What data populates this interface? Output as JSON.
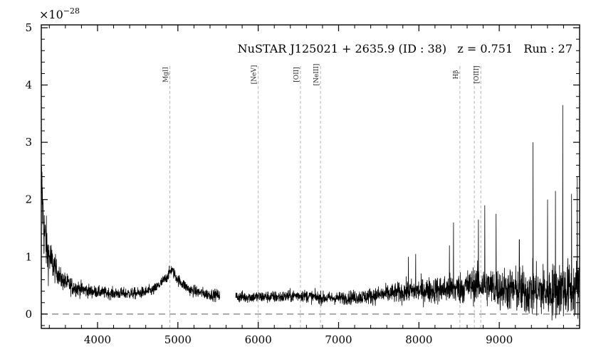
{
  "chart_data": {
    "type": "line",
    "title": "NuSTAR J125021 + 2635.9 (ID : 38)   z = 0.751   Run : 27",
    "xlabel": "",
    "ylabel": "",
    "y_multiplier_label": "×10",
    "y_multiplier_exponent": "−28",
    "xlim": [
      3300,
      10000
    ],
    "ylim": [
      -0.25,
      5.05
    ],
    "x_ticks": [
      4000,
      5000,
      6000,
      7000,
      8000,
      9000
    ],
    "y_ticks": [
      0,
      1,
      2,
      3,
      4,
      5
    ],
    "grid": false,
    "zero_line": {
      "y": 0,
      "style": "dashed",
      "color": "#888888"
    },
    "gap": [
      5520,
      5720
    ],
    "spectrum_anchors": [
      [
        3300,
        2.4
      ],
      [
        3330,
        1.5
      ],
      [
        3380,
        1.05
      ],
      [
        3450,
        0.85
      ],
      [
        3550,
        0.6
      ],
      [
        3700,
        0.47
      ],
      [
        3900,
        0.4
      ],
      [
        4200,
        0.36
      ],
      [
        4500,
        0.36
      ],
      [
        4700,
        0.42
      ],
      [
        4850,
        0.62
      ],
      [
        4920,
        0.78
      ],
      [
        5000,
        0.6
      ],
      [
        5150,
        0.42
      ],
      [
        5350,
        0.35
      ],
      [
        5500,
        0.33
      ],
      [
        5750,
        0.3
      ],
      [
        6000,
        0.3
      ],
      [
        6300,
        0.3
      ],
      [
        6520,
        0.33
      ],
      [
        6800,
        0.28
      ],
      [
        7000,
        0.28
      ],
      [
        7300,
        0.3
      ],
      [
        7600,
        0.35
      ],
      [
        7900,
        0.4
      ],
      [
        8200,
        0.42
      ],
      [
        8500,
        0.45
      ],
      [
        8700,
        0.52
      ],
      [
        9000,
        0.45
      ],
      [
        9300,
        0.4
      ],
      [
        9600,
        0.4
      ],
      [
        10000,
        0.45
      ]
    ],
    "noise_anchors": [
      [
        3300,
        0.7
      ],
      [
        3500,
        0.22
      ],
      [
        4000,
        0.12
      ],
      [
        5500,
        0.12
      ],
      [
        6500,
        0.13
      ],
      [
        7000,
        0.13
      ],
      [
        7500,
        0.18
      ],
      [
        8000,
        0.25
      ],
      [
        8500,
        0.33
      ],
      [
        9000,
        0.42
      ],
      [
        9500,
        0.55
      ],
      [
        10000,
        0.6
      ]
    ],
    "spikes": [
      {
        "x": 7870,
        "y": 1.0
      },
      {
        "x": 7960,
        "y": 1.05
      },
      {
        "x": 8380,
        "y": 1.2
      },
      {
        "x": 8430,
        "y": 1.6
      },
      {
        "x": 8740,
        "y": 1.65
      },
      {
        "x": 8820,
        "y": 1.9
      },
      {
        "x": 8960,
        "y": 1.75
      },
      {
        "x": 9250,
        "y": 1.3
      },
      {
        "x": 9420,
        "y": 3.0
      },
      {
        "x": 9600,
        "y": 2.0
      },
      {
        "x": 9700,
        "y": 2.15
      },
      {
        "x": 9790,
        "y": 3.65
      },
      {
        "x": 9900,
        "y": 2.1
      },
      {
        "x": 9970,
        "y": 2.4
      }
    ],
    "lines": [
      {
        "label": "MgII",
        "x": 4900
      },
      {
        "label": "[NeV]",
        "x": 6000
      },
      {
        "label": "[OII]",
        "x": 6525
      },
      {
        "label": "[NeIII]",
        "x": 6775
      },
      {
        "label": "Hβ",
        "x": 8510
      },
      {
        "label": "",
        "x": 8690
      },
      {
        "label": "[OIII]",
        "x": 8770
      }
    ]
  }
}
